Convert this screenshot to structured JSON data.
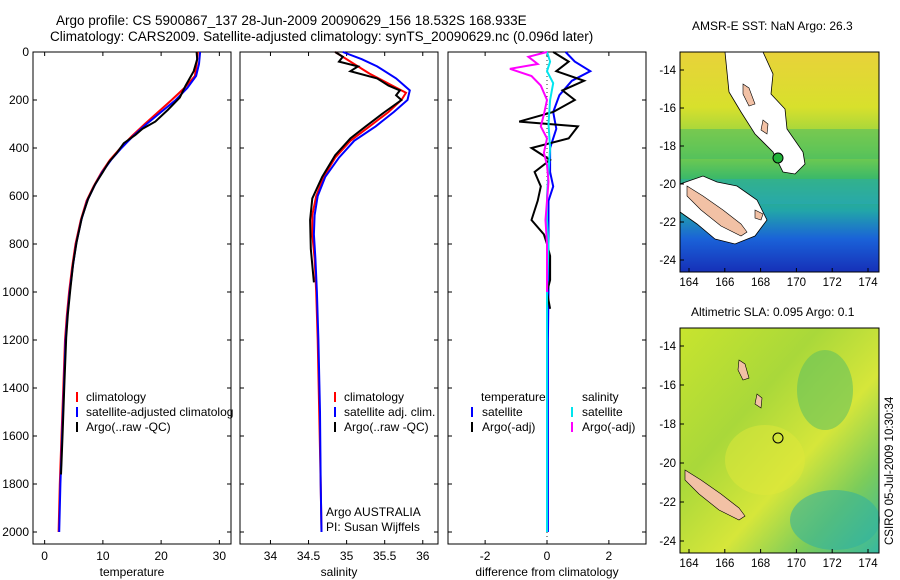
{
  "header": {
    "line1": "Argo profile: CS 5900867_137 28-Jun-2009 20090629_156 18.532S 168.933E",
    "line2": "Climatology: CARS2009. Satellite-adjusted climatology: synTS_20090629.nc (0.096d later)"
  },
  "colors": {
    "climatology": "#ff0000",
    "satellite": "#0000ff",
    "argo": "#000000",
    "sat_sal": "#00e5ee",
    "argo_sal": "#ff00ff"
  },
  "chart_data": [
    {
      "type": "line",
      "id": "temperature",
      "xlabel": "temperature",
      "ylabel": "",
      "xlim": [
        -2,
        32
      ],
      "ylim": [
        2050,
        0
      ],
      "xticks": [
        0,
        10,
        20,
        30
      ],
      "yticks": [
        0,
        200,
        400,
        600,
        800,
        1000,
        1200,
        1400,
        1600,
        1800,
        2000
      ],
      "series": [
        {
          "name": "climatology",
          "color": "#ff0000",
          "points": [
            [
              26.3,
              0
            ],
            [
              26.1,
              50
            ],
            [
              25.8,
              100
            ],
            [
              24.0,
              150
            ],
            [
              21.8,
              200
            ],
            [
              19.5,
              250
            ],
            [
              17.2,
              300
            ],
            [
              15.0,
              350
            ],
            [
              13.0,
              400
            ],
            [
              11.2,
              450
            ],
            [
              9.8,
              500
            ],
            [
              8.4,
              560
            ],
            [
              7.2,
              620
            ],
            [
              6.2,
              700
            ],
            [
              5.3,
              800
            ],
            [
              4.7,
              900
            ],
            [
              4.2,
              1000
            ],
            [
              3.8,
              1100
            ],
            [
              3.5,
              1200
            ],
            [
              3.2,
              1400
            ],
            [
              2.9,
              1600
            ],
            [
              2.6,
              1800
            ],
            [
              2.4,
              2000
            ]
          ]
        },
        {
          "name": "satellite-adjusted climatology",
          "color": "#0000ff",
          "points": [
            [
              26.7,
              0
            ],
            [
              26.5,
              50
            ],
            [
              26.0,
              100
            ],
            [
              24.5,
              150
            ],
            [
              22.5,
              200
            ],
            [
              20.0,
              250
            ],
            [
              17.5,
              300
            ],
            [
              15.2,
              350
            ],
            [
              13.2,
              400
            ],
            [
              11.4,
              450
            ],
            [
              9.9,
              500
            ],
            [
              8.5,
              560
            ],
            [
              7.3,
              620
            ],
            [
              6.3,
              700
            ],
            [
              5.4,
              800
            ],
            [
              4.8,
              900
            ],
            [
              4.3,
              1000
            ],
            [
              3.9,
              1100
            ],
            [
              3.6,
              1200
            ],
            [
              3.3,
              1400
            ],
            [
              3.0,
              1600
            ],
            [
              2.7,
              1800
            ],
            [
              2.5,
              2000
            ]
          ]
        },
        {
          "name": "Argo(..raw -QC)",
          "color": "#000000",
          "points": [
            [
              26.1,
              0
            ],
            [
              26.2,
              30
            ],
            [
              25.6,
              80
            ],
            [
              24.2,
              140
            ],
            [
              23.2,
              190
            ],
            [
              21.2,
              240
            ],
            [
              19.0,
              290
            ],
            [
              16.8,
              320
            ],
            [
              15.6,
              345
            ],
            [
              13.6,
              380
            ],
            [
              12.4,
              420
            ],
            [
              11.0,
              460
            ],
            [
              10.0,
              500
            ],
            [
              8.7,
              550
            ],
            [
              7.5,
              610
            ],
            [
              6.4,
              690
            ],
            [
              5.5,
              790
            ],
            [
              4.9,
              880
            ],
            [
              4.4,
              990
            ],
            [
              4.0,
              1090
            ],
            [
              3.7,
              1190
            ],
            [
              3.4,
              1380
            ],
            [
              3.1,
              1580
            ],
            [
              2.9,
              1710
            ],
            [
              2.8,
              1760
            ]
          ]
        }
      ],
      "legend": {
        "position": "bottom-right",
        "entries": [
          "climatology",
          "satellite-adjusted climatolog",
          "Argo(..raw -QC)"
        ]
      }
    },
    {
      "type": "line",
      "id": "salinity",
      "xlabel": "salinity",
      "xlim": [
        33.6,
        36.2
      ],
      "ylim": [
        2050,
        0
      ],
      "xticks": [
        34,
        34.5,
        35,
        35.5,
        36
      ],
      "series": [
        {
          "name": "climatology",
          "color": "#ff0000",
          "points": [
            [
              34.85,
              0
            ],
            [
              35.05,
              40
            ],
            [
              35.3,
              90
            ],
            [
              35.6,
              140
            ],
            [
              35.78,
              170
            ],
            [
              35.72,
              200
            ],
            [
              35.55,
              250
            ],
            [
              35.3,
              310
            ],
            [
              35.05,
              370
            ],
            [
              34.85,
              440
            ],
            [
              34.7,
              520
            ],
            [
              34.6,
              600
            ],
            [
              34.55,
              680
            ],
            [
              34.55,
              760
            ],
            [
              34.58,
              860
            ],
            [
              34.6,
              1000
            ],
            [
              34.62,
              1200
            ],
            [
              34.64,
              1500
            ],
            [
              34.66,
              1800
            ],
            [
              34.67,
              2000
            ]
          ]
        },
        {
          "name": "satellite adj. clim.",
          "color": "#0000ff",
          "points": [
            [
              34.95,
              0
            ],
            [
              35.2,
              30
            ],
            [
              35.4,
              60
            ],
            [
              35.65,
              110
            ],
            [
              35.83,
              160
            ],
            [
              35.8,
              200
            ],
            [
              35.62,
              250
            ],
            [
              35.38,
              310
            ],
            [
              35.1,
              370
            ],
            [
              34.9,
              440
            ],
            [
              34.72,
              520
            ],
            [
              34.62,
              600
            ],
            [
              34.58,
              680
            ],
            [
              34.57,
              760
            ],
            [
              34.59,
              860
            ],
            [
              34.61,
              1000
            ],
            [
              34.63,
              1200
            ],
            [
              34.65,
              1500
            ],
            [
              34.66,
              1800
            ],
            [
              34.67,
              2000
            ]
          ]
        },
        {
          "name": "Argo(..raw -QC)",
          "color": "#000000",
          "points": [
            [
              34.85,
              0
            ],
            [
              34.95,
              20
            ],
            [
              34.9,
              40
            ],
            [
              35.15,
              60
            ],
            [
              35.05,
              80
            ],
            [
              35.4,
              110
            ],
            [
              35.55,
              140
            ],
            [
              35.7,
              160
            ],
            [
              35.65,
              180
            ],
            [
              35.72,
              200
            ],
            [
              35.5,
              250
            ],
            [
              35.25,
              310
            ],
            [
              35.05,
              360
            ],
            [
              34.85,
              430
            ],
            [
              34.68,
              520
            ],
            [
              34.55,
              610
            ],
            [
              34.52,
              700
            ],
            [
              34.53,
              820
            ],
            [
              34.57,
              960
            ]
          ]
        }
      ],
      "legend": {
        "position": "bottom-right",
        "entries": [
          "climatology",
          "satellite adj. clim.",
          "Argo(..raw -QC)"
        ]
      },
      "annotations": [
        "Argo AUSTRALIA",
        "PI: Susan Wijffels"
      ]
    },
    {
      "type": "line",
      "id": "difference",
      "xlabel": "difference from climatology",
      "xlim": [
        -3.2,
        3.2
      ],
      "ylim": [
        2050,
        0
      ],
      "xticks": [
        -2,
        0,
        2
      ],
      "series": [
        {
          "name": "temperature satellite",
          "color": "#0000ff",
          "points": [
            [
              0.6,
              0
            ],
            [
              0.9,
              40
            ],
            [
              1.4,
              80
            ],
            [
              0.8,
              120
            ],
            [
              0.4,
              180
            ],
            [
              0.2,
              250
            ],
            [
              0.3,
              320
            ],
            [
              0.1,
              400
            ],
            [
              0.1,
              500
            ],
            [
              0.2,
              560
            ],
            [
              0.05,
              620
            ],
            [
              0.05,
              700
            ],
            [
              0.05,
              800
            ],
            [
              0.05,
              900
            ],
            [
              0.05,
              1000
            ],
            [
              0.03,
              1200
            ],
            [
              0.03,
              1600
            ],
            [
              0.03,
              2000
            ]
          ]
        },
        {
          "name": "temperature Argo(-adj)",
          "color": "#000000",
          "points": [
            [
              0.2,
              0
            ],
            [
              0.7,
              40
            ],
            [
              0.3,
              80
            ],
            [
              1.2,
              120
            ],
            [
              0.5,
              160
            ],
            [
              0.9,
              200
            ],
            [
              0.2,
              250
            ],
            [
              -0.9,
              290
            ],
            [
              1.0,
              310
            ],
            [
              0.7,
              360
            ],
            [
              -0.5,
              400
            ],
            [
              0.1,
              450
            ],
            [
              -0.4,
              500
            ],
            [
              -0.2,
              560
            ],
            [
              -0.3,
              620
            ],
            [
              -0.5,
              700
            ],
            [
              -0.1,
              760
            ],
            [
              0.0,
              800
            ],
            [
              0.1,
              850
            ],
            [
              0.1,
              950
            ],
            [
              0.0,
              1000
            ],
            [
              0.1,
              1070
            ]
          ]
        },
        {
          "name": "salinity satellite",
          "color": "#00e5ee",
          "points": [
            [
              0.0,
              0
            ],
            [
              0.1,
              40
            ],
            [
              0.0,
              80
            ],
            [
              0.2,
              130
            ],
            [
              0.1,
              200
            ],
            [
              0.05,
              300
            ],
            [
              0.1,
              400
            ],
            [
              0.05,
              500
            ],
            [
              0.0,
              600
            ],
            [
              0.0,
              700
            ],
            [
              0.05,
              800
            ],
            [
              0.0,
              1000
            ],
            [
              0.0,
              1200
            ],
            [
              0.0,
              1400
            ],
            [
              0.0,
              1600
            ],
            [
              0.0,
              1800
            ],
            [
              0.0,
              2000
            ]
          ]
        },
        {
          "name": "salinity Argo(-adj)",
          "color": "#ff00ff",
          "points": [
            [
              0.0,
              0
            ],
            [
              -0.6,
              20
            ],
            [
              -0.3,
              50
            ],
            [
              -1.2,
              70
            ],
            [
              -0.5,
              100
            ],
            [
              -0.2,
              140
            ],
            [
              0.0,
              200
            ],
            [
              -0.1,
              260
            ],
            [
              -0.2,
              310
            ],
            [
              0.0,
              360
            ],
            [
              -0.1,
              420
            ],
            [
              0.0,
              470
            ],
            [
              0.05,
              540
            ],
            [
              0.0,
              620
            ],
            [
              -0.05,
              700
            ],
            [
              0.0,
              800
            ],
            [
              0.0,
              900
            ],
            [
              0.0,
              1000
            ]
          ]
        }
      ],
      "legend": {
        "position": "bottom",
        "headers": [
          "temperature",
          "salinity"
        ],
        "entries": [
          "satellite",
          "Argo(-adj)",
          "satellite",
          "Argo(-adj)"
        ]
      }
    }
  ],
  "maps": {
    "sst": {
      "title": "AMSR-E SST: NaN Argo: 26.3",
      "yticks": [
        "-14",
        "-16",
        "-18",
        "-20",
        "-22",
        "-24"
      ],
      "xticks": [
        "164",
        "166",
        "168",
        "170",
        "172",
        "174"
      ]
    },
    "sla": {
      "title": "Altimetric SLA: 0.095 Argo: 0.1",
      "yticks": [
        "-14",
        "-16",
        "-18",
        "-20",
        "-22",
        "-24"
      ],
      "xticks": [
        "164",
        "166",
        "168",
        "170",
        "172",
        "174"
      ]
    }
  },
  "credit": "CSIRO 05-Jul-2009 10:30:34"
}
